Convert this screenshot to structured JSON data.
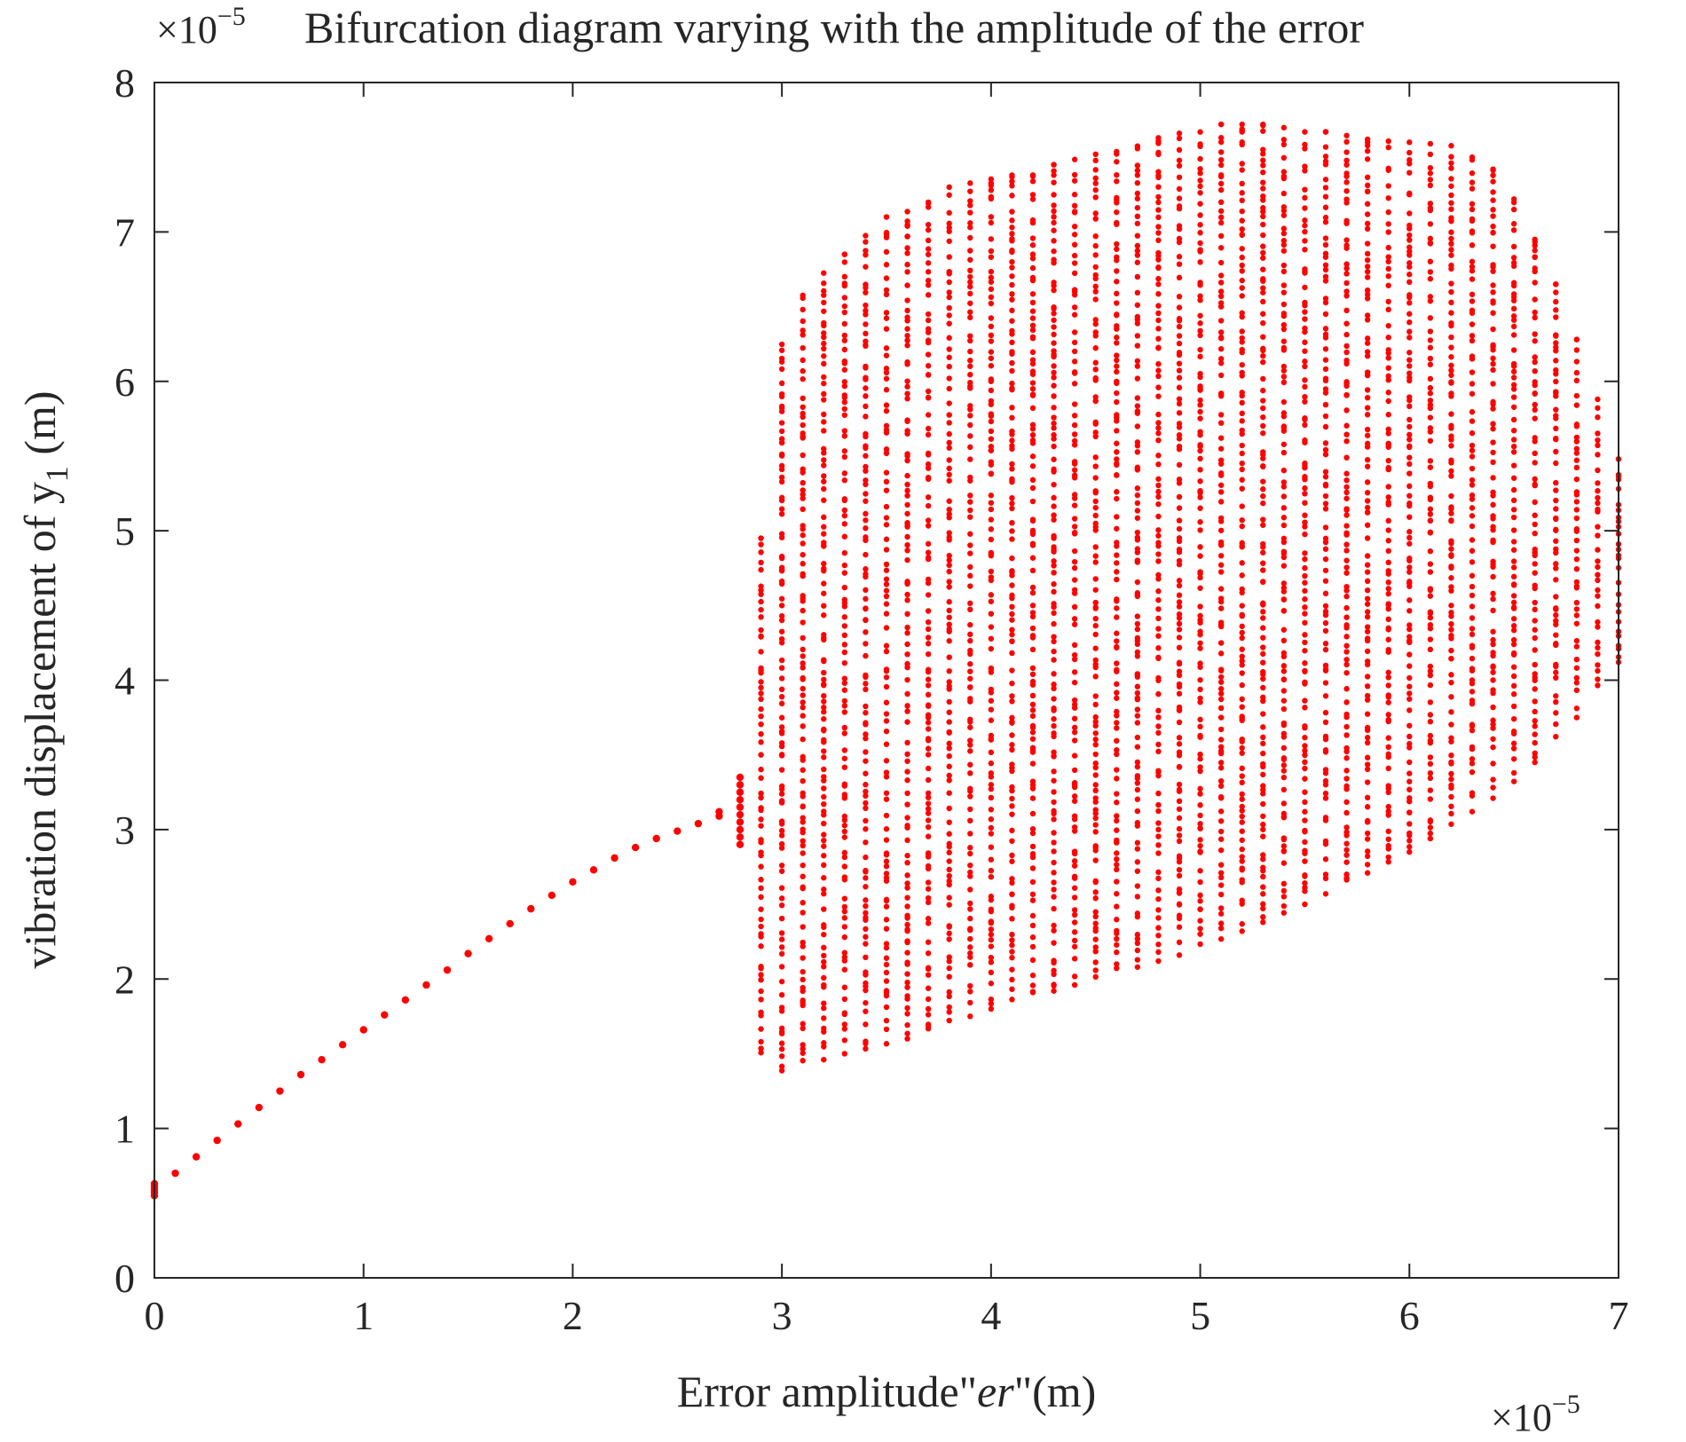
{
  "chart_data": {
    "type": "scatter",
    "title": "Bifurcation diagram varying with the amplitude of the error",
    "xlabel": "Error amplitude\"er\"(m)",
    "ylabel": "vibration displacement of y1 (m)",
    "ylabel_parts": {
      "main": "vibration displacement of y",
      "sub": "1",
      "unit": " (m)"
    },
    "xlabel_parts": {
      "pre": "Error amplitude\"",
      "italic": "er",
      "post": "\"(m)"
    },
    "x_exponent": {
      "base": "×10",
      "power": "−5"
    },
    "y_exponent": {
      "base": "×10",
      "power": "−5"
    },
    "xlim": [
      0,
      7
    ],
    "ylim": [
      0,
      8
    ],
    "x_scale": 1e-05,
    "y_scale": 1e-05,
    "xticks": [
      "0",
      "1",
      "2",
      "3",
      "4",
      "5",
      "6",
      "7"
    ],
    "yticks": [
      "0",
      "1",
      "2",
      "3",
      "4",
      "5",
      "6",
      "7",
      "8"
    ],
    "grid": false,
    "marker_color": "#ff0000",
    "series": [
      {
        "points": [
          [
            0.0,
            0.55
          ],
          [
            0.0,
            0.57
          ],
          [
            0.0,
            0.59
          ],
          [
            0.0,
            0.61
          ],
          [
            0.0,
            0.63
          ],
          [
            0.1,
            0.7
          ],
          [
            0.2,
            0.81
          ],
          [
            0.3,
            0.92
          ],
          [
            0.4,
            1.03
          ],
          [
            0.5,
            1.14
          ],
          [
            0.6,
            1.25
          ],
          [
            0.7,
            1.36
          ],
          [
            0.8,
            1.46
          ],
          [
            0.9,
            1.56
          ],
          [
            1.0,
            1.66
          ],
          [
            1.1,
            1.76
          ],
          [
            1.2,
            1.86
          ],
          [
            1.3,
            1.96
          ],
          [
            1.4,
            2.06
          ],
          [
            1.5,
            2.17
          ],
          [
            1.6,
            2.27
          ],
          [
            1.7,
            2.37
          ],
          [
            1.8,
            2.47
          ],
          [
            1.9,
            2.56
          ],
          [
            2.0,
            2.65
          ],
          [
            2.1,
            2.73
          ],
          [
            2.2,
            2.81
          ],
          [
            2.3,
            2.88
          ],
          [
            2.4,
            2.94
          ],
          [
            2.5,
            2.99
          ],
          [
            2.6,
            3.04
          ],
          [
            2.7,
            3.09
          ],
          [
            2.7,
            3.12
          ],
          [
            2.8,
            2.9
          ],
          [
            2.8,
            2.95
          ],
          [
            2.8,
            3.0
          ],
          [
            2.8,
            3.05
          ],
          [
            2.8,
            3.1
          ],
          [
            2.8,
            3.15
          ],
          [
            2.8,
            3.2
          ],
          [
            2.8,
            3.25
          ],
          [
            2.8,
            3.3
          ],
          [
            2.8,
            3.35
          ]
        ]
      }
    ],
    "chaotic_band": {
      "x_start": 2.9,
      "x_end": 7.0,
      "x_step": 0.1,
      "lower": [
        [
          2.9,
          1.5
        ],
        [
          3.0,
          1.38
        ],
        [
          3.3,
          1.5
        ],
        [
          3.6,
          1.6
        ],
        [
          4.0,
          1.8
        ],
        [
          4.5,
          2.0
        ],
        [
          5.0,
          2.2
        ],
        [
          5.5,
          2.5
        ],
        [
          6.0,
          2.85
        ],
        [
          6.5,
          3.3
        ],
        [
          6.8,
          3.75
        ],
        [
          6.9,
          3.95
        ],
        [
          7.0,
          4.12
        ]
      ],
      "upper": [
        [
          2.9,
          4.95
        ],
        [
          3.0,
          6.25
        ],
        [
          3.1,
          6.6
        ],
        [
          3.3,
          6.85
        ],
        [
          3.5,
          7.1
        ],
        [
          3.8,
          7.3
        ],
        [
          4.1,
          7.38
        ],
        [
          4.5,
          7.52
        ],
        [
          4.8,
          7.65
        ],
        [
          5.1,
          7.72
        ],
        [
          5.4,
          7.72
        ],
        [
          5.8,
          7.62
        ],
        [
          6.2,
          7.58
        ],
        [
          6.4,
          7.42
        ],
        [
          6.5,
          7.22
        ],
        [
          6.6,
          6.95
        ],
        [
          6.7,
          6.65
        ],
        [
          6.8,
          6.28
        ],
        [
          6.9,
          5.88
        ],
        [
          7.0,
          5.48
        ]
      ]
    }
  }
}
